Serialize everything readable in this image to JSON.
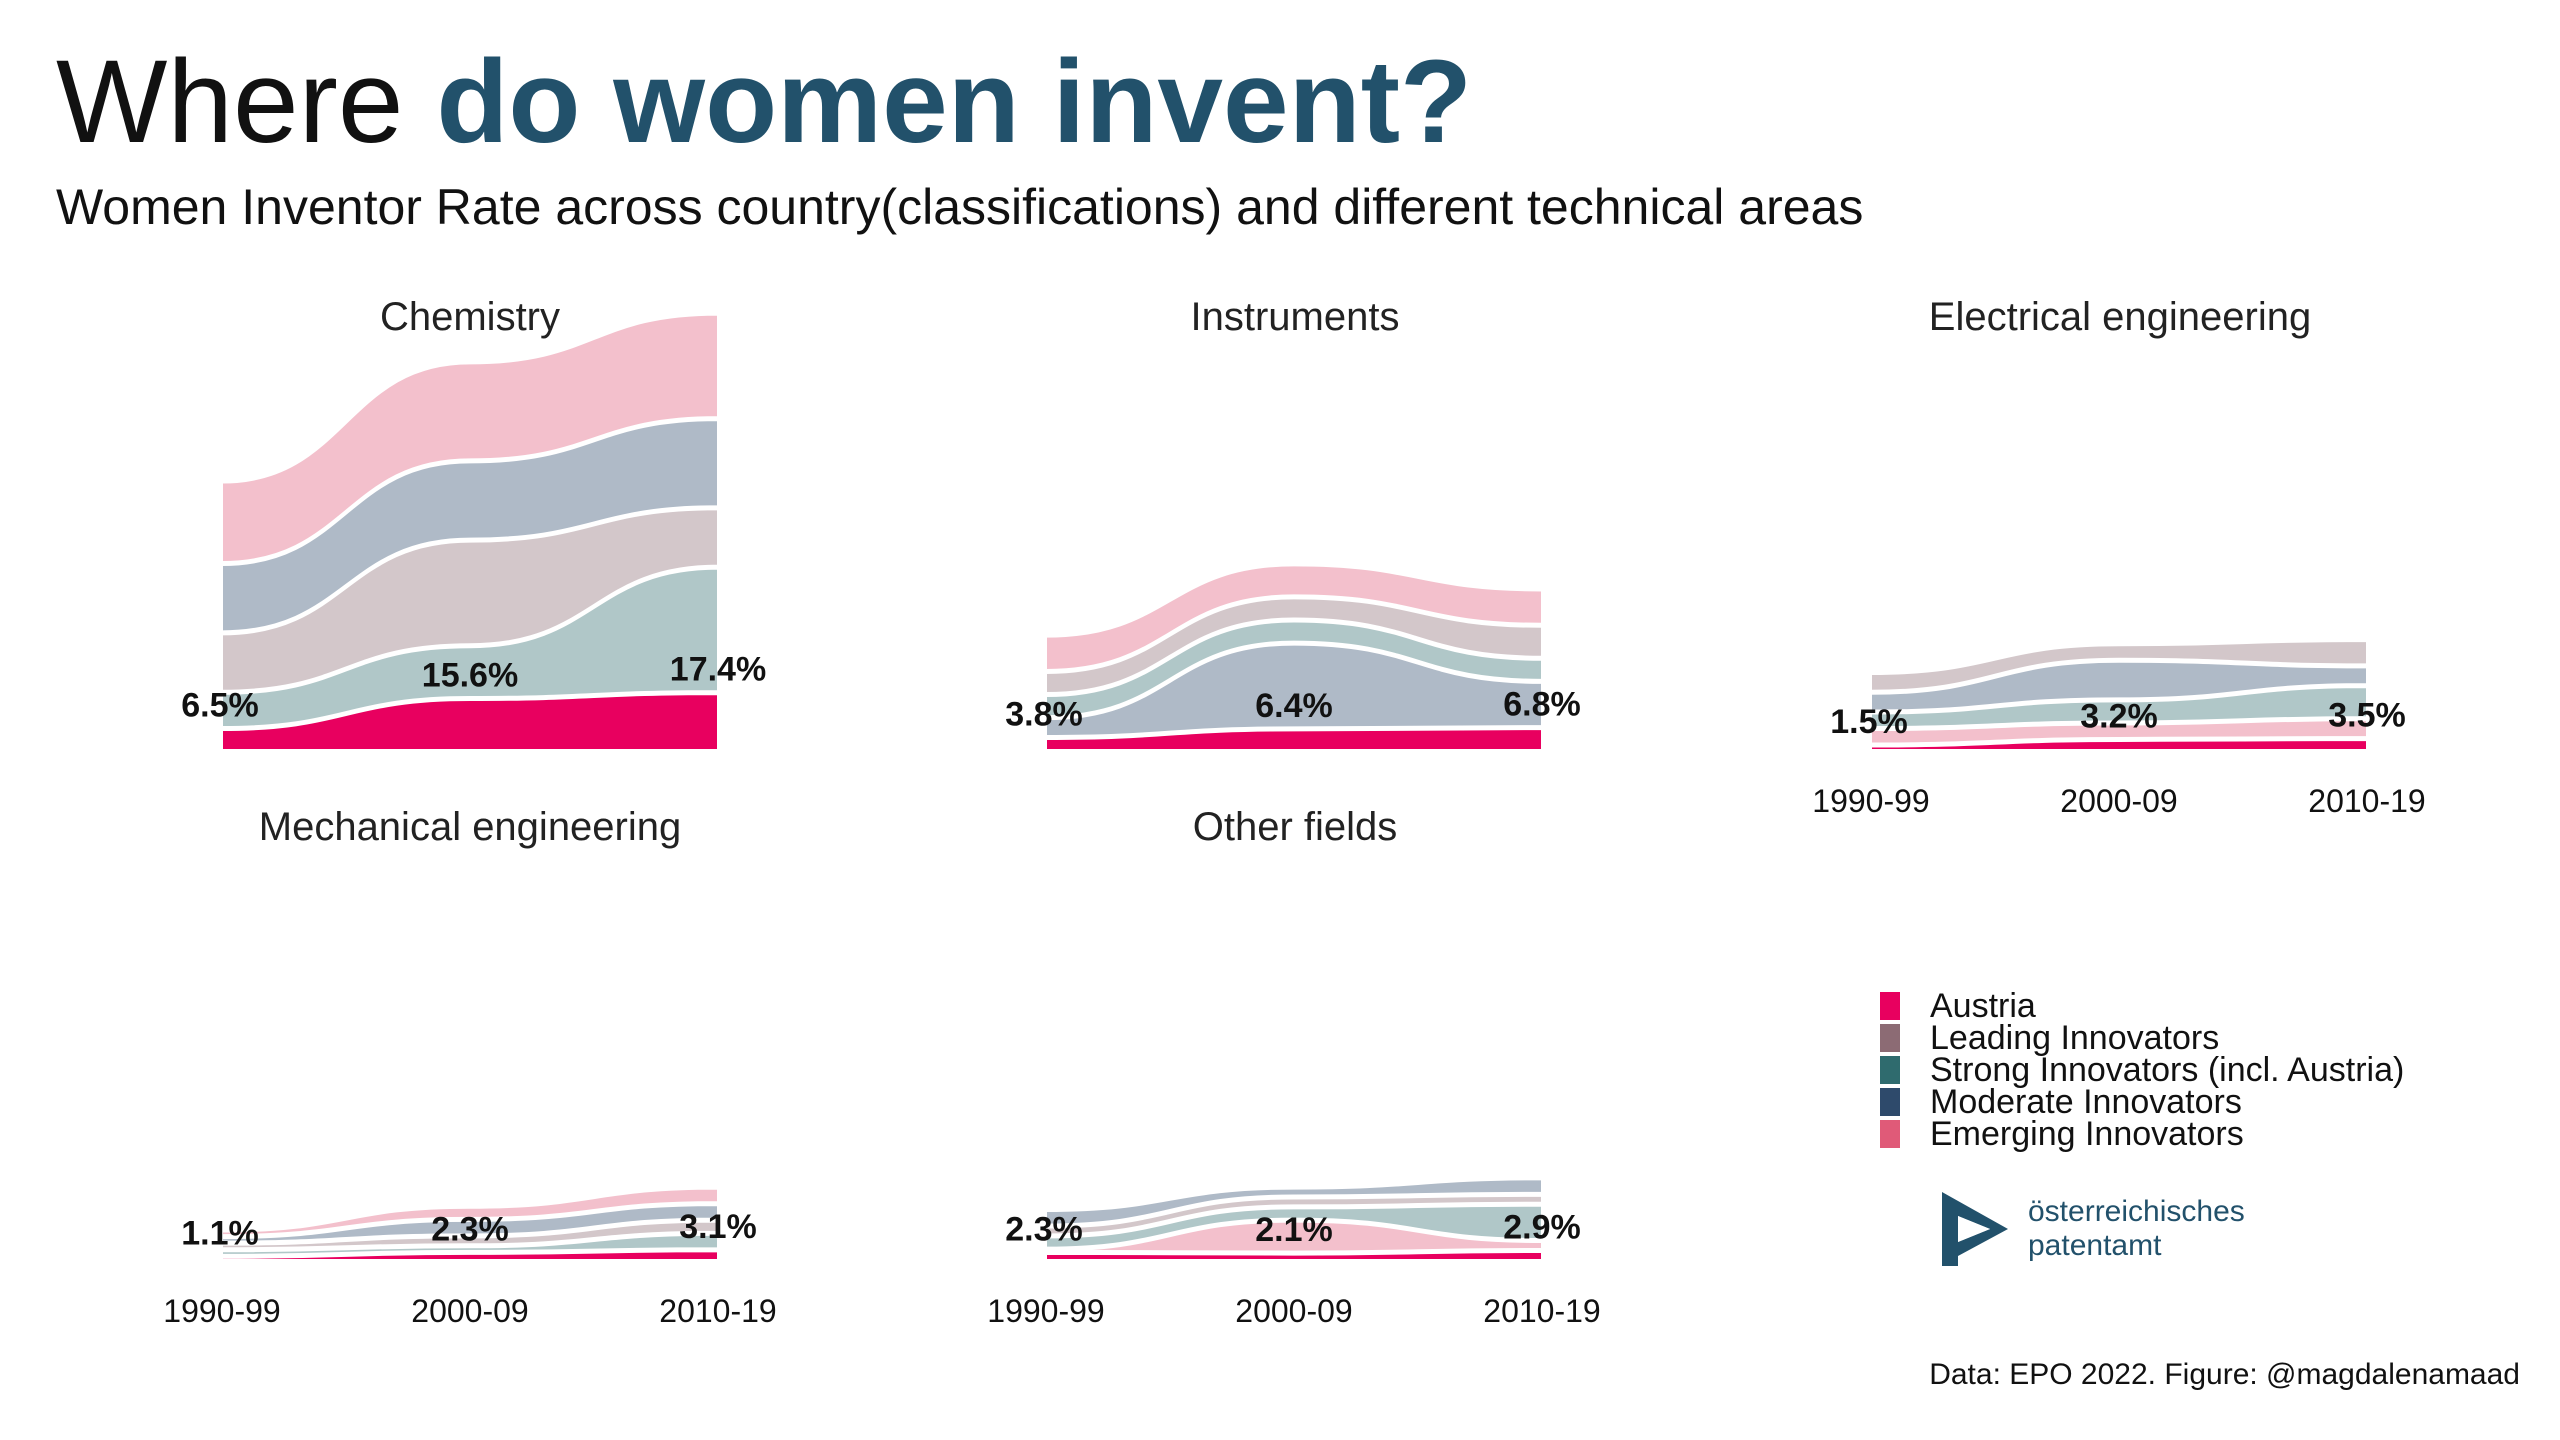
{
  "title": {
    "prefix": "Where ",
    "accent": "do women invent?"
  },
  "subtitle": "Women Inventor Rate across country(classifications) and different technical areas",
  "caption": "Data: EPO 2022. Figure: @magdalenamaad",
  "logo": {
    "line1": "österreichisches",
    "line2": "patentamt",
    "color": "#22516b"
  },
  "colors": {
    "Austria": "#e8005f",
    "Leading Innovators": "#8c6b74",
    "Strong Innovators (incl. Austria)": "#2f6b6e",
    "Moderate Innovators": "#2e4a6b",
    "Emerging Innovators": "#e05a78"
  },
  "legend": [
    {
      "label": "Austria",
      "color": "#e8005f"
    },
    {
      "label": "Leading Innovators",
      "color": "#8c6b74"
    },
    {
      "label": "Strong Innovators (incl. Austria)",
      "color": "#2f6b6e"
    },
    {
      "label": "Moderate Innovators",
      "color": "#2e4a6b"
    },
    {
      "label": "Emerging Innovators",
      "color": "#e05a78"
    }
  ],
  "chart_data": [
    {
      "type": "area",
      "title": "Chemistry",
      "categories": [
        "1990-99",
        "2000-09",
        "2010-19"
      ],
      "series": [
        {
          "name": "Austria",
          "values": [
            6.5,
            15.6,
            17.4
          ]
        },
        {
          "name": "Strong Innovators (incl. Austria)",
          "values": [
            11,
            16,
            38
          ]
        },
        {
          "name": "Leading Innovators",
          "values": [
            18,
            32,
            18
          ]
        },
        {
          "name": "Moderate Innovators",
          "values": [
            21,
            24,
            27
          ]
        },
        {
          "name": "Emerging Innovators",
          "values": [
            25,
            30,
            32
          ]
        }
      ],
      "labels": [
        "6.5%",
        "15.6%",
        "17.4%"
      ]
    },
    {
      "type": "area",
      "title": "Instruments",
      "categories": [
        "1990-99",
        "2000-09",
        "2010-19"
      ],
      "series": [
        {
          "name": "Austria",
          "values": [
            3.8,
            6.4,
            6.8
          ]
        },
        {
          "name": "Moderate Innovators",
          "values": [
            6,
            26,
            14
          ]
        },
        {
          "name": "Strong Innovators (incl. Austria)",
          "values": [
            7,
            7,
            7
          ]
        },
        {
          "name": "Leading Innovators",
          "values": [
            7,
            7,
            10
          ]
        },
        {
          "name": "Emerging Innovators",
          "values": [
            11,
            10,
            11
          ]
        }
      ],
      "labels": [
        "3.8%",
        "6.4%",
        "6.8%"
      ]
    },
    {
      "type": "area",
      "title": "Electrical engineering",
      "categories": [
        "1990-99",
        "2000-09",
        "2010-19"
      ],
      "series": [
        {
          "name": "Austria",
          "values": [
            1.5,
            3.2,
            3.5
          ]
        },
        {
          "name": "Emerging Innovators",
          "values": [
            5,
            5,
            6
          ]
        },
        {
          "name": "Strong Innovators (incl. Austria)",
          "values": [
            5,
            7,
            10
          ]
        },
        {
          "name": "Moderate Innovators",
          "values": [
            6,
            12,
            6
          ]
        },
        {
          "name": "Leading Innovators",
          "values": [
            6,
            5,
            8
          ]
        }
      ],
      "labels": [
        "1.5%",
        "3.2%",
        "3.5%"
      ]
    },
    {
      "type": "area",
      "title": "Mechanical engineering",
      "categories": [
        "1990-99",
        "2000-09",
        "2010-19"
      ],
      "series": [
        {
          "name": "Austria",
          "values": [
            1.1,
            2.3,
            3.1
          ]
        },
        {
          "name": "Strong Innovators (incl. Austria)",
          "values": [
            2,
            2,
            5
          ]
        },
        {
          "name": "Leading Innovators",
          "values": [
            2,
            3,
            4
          ]
        },
        {
          "name": "Moderate Innovators",
          "values": [
            2,
            5,
            5
          ]
        },
        {
          "name": "Emerging Innovators",
          "values": [
            2,
            4,
            5
          ]
        }
      ],
      "labels": [
        "1.1%",
        "2.3%",
        "3.1%"
      ]
    },
    {
      "type": "area",
      "title": "Other fields",
      "categories": [
        "1990-99",
        "2000-09",
        "2010-19"
      ],
      "series": [
        {
          "name": "Austria",
          "values": [
            2.3,
            2.1,
            2.9
          ]
        },
        {
          "name": "Emerging Innovators",
          "values": [
            1,
            10,
            3
          ]
        },
        {
          "name": "Strong Innovators (incl. Austria)",
          "values": [
            4,
            4,
            11
          ]
        },
        {
          "name": "Leading Innovators",
          "values": [
            3,
            3,
            3
          ]
        },
        {
          "name": "Moderate Innovators",
          "values": [
            5,
            3,
            5
          ]
        }
      ],
      "labels": [
        "2.3%",
        "2.1%",
        "2.9%"
      ]
    }
  ]
}
